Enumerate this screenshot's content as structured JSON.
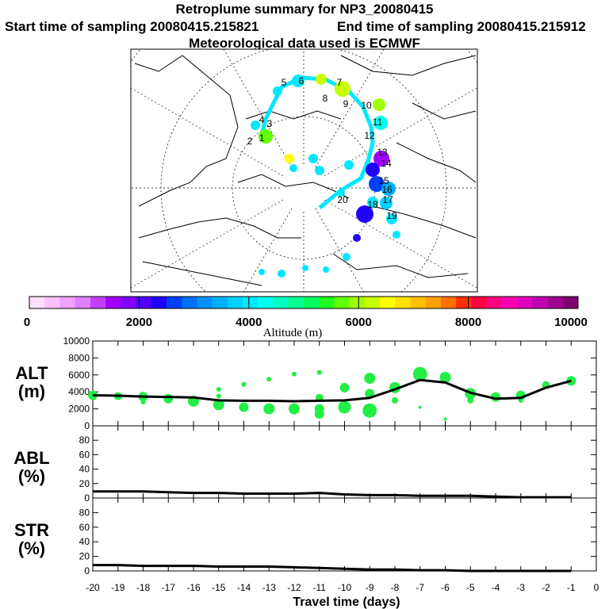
{
  "titles": {
    "line1": "Retroplume summary for NP3_20080415",
    "line2_start": "Start time of sampling 20080415.215821",
    "line2_end": "End time of sampling 20080415.215912",
    "line3": "Meteorological data used is ECMWF"
  },
  "colorbar": {
    "label": "Altitude (m)",
    "tick_labels": [
      "0",
      "2000",
      "4000",
      "6000",
      "8000",
      "10000"
    ],
    "colors": [
      "#ffe0ff",
      "#ffc0ff",
      "#f0a0ff",
      "#e080ff",
      "#c040ff",
      "#a000ff",
      "#8000ff",
      "#5000ff",
      "#2000ff",
      "#0040ff",
      "#0070ff",
      "#0090ff",
      "#00b0ff",
      "#00d0ff",
      "#00e8ff",
      "#00ffee",
      "#00ffc0",
      "#00ff90",
      "#00ff60",
      "#20ff20",
      "#60ff00",
      "#a0ff00",
      "#c8ff00",
      "#ffff00",
      "#ffe000",
      "#ffc000",
      "#ffa000",
      "#ff7000",
      "#ff3000",
      "#ff0040",
      "#ff0080",
      "#ff00b0",
      "#e000c0",
      "#c000b0",
      "#a00090",
      "#800070"
    ]
  },
  "map": {
    "day_labels": [
      "1",
      "2",
      "3",
      "4",
      "5",
      "6",
      "7",
      "8",
      "9",
      "10",
      "11",
      "12",
      "13",
      "14",
      "15",
      "16",
      "17",
      "18",
      "19",
      "20"
    ]
  },
  "chart_data": [
    {
      "type": "line",
      "panel": "ALT",
      "ylabel_line1": "ALT",
      "ylabel_line2": "(m)",
      "xlim": [
        -20,
        0
      ],
      "ylim": [
        0,
        10000
      ],
      "yticks": [
        "0",
        "2000",
        "4000",
        "6000",
        "8000",
        "10000"
      ],
      "x": [
        -20,
        -19,
        -18,
        -17,
        -16,
        -15,
        -14,
        -13,
        -12,
        -11,
        -10,
        -9,
        -8,
        -7,
        -6,
        -5,
        -4,
        -3,
        -2,
        -1
      ],
      "values": [
        3600,
        3550,
        3450,
        3400,
        3350,
        3000,
        2950,
        2950,
        2900,
        2950,
        3000,
        3300,
        4300,
        5400,
        5100,
        3900,
        3200,
        3300,
        4500,
        5300
      ],
      "scatter": [
        {
          "x": -20,
          "y": 3600,
          "r": 6
        },
        {
          "x": -19,
          "y": 3500,
          "r": 5
        },
        {
          "x": -18,
          "y": 3450,
          "r": 6
        },
        {
          "x": -18,
          "y": 2800,
          "r": 3
        },
        {
          "x": -17,
          "y": 3200,
          "r": 6
        },
        {
          "x": -16,
          "y": 2900,
          "r": 7
        },
        {
          "x": -15,
          "y": 2500,
          "r": 7
        },
        {
          "x": -15,
          "y": 4300,
          "r": 3
        },
        {
          "x": -15,
          "y": 3500,
          "r": 3
        },
        {
          "x": -14,
          "y": 2200,
          "r": 6
        },
        {
          "x": -14,
          "y": 4900,
          "r": 3
        },
        {
          "x": -13,
          "y": 2000,
          "r": 7
        },
        {
          "x": -13,
          "y": 5500,
          "r": 3
        },
        {
          "x": -12,
          "y": 2000,
          "r": 7
        },
        {
          "x": -12,
          "y": 6100,
          "r": 3
        },
        {
          "x": -11,
          "y": 1400,
          "r": 6
        },
        {
          "x": -11,
          "y": 2000,
          "r": 6
        },
        {
          "x": -11,
          "y": 3300,
          "r": 5
        },
        {
          "x": -11,
          "y": 6300,
          "r": 3
        },
        {
          "x": -10,
          "y": 2200,
          "r": 8
        },
        {
          "x": -10,
          "y": 4500,
          "r": 6
        },
        {
          "x": -9,
          "y": 1800,
          "r": 9
        },
        {
          "x": -9,
          "y": 5600,
          "r": 7
        },
        {
          "x": -9,
          "y": 3800,
          "r": 6
        },
        {
          "x": -8,
          "y": 4500,
          "r": 7
        },
        {
          "x": -8,
          "y": 3000,
          "r": 4
        },
        {
          "x": -7,
          "y": 6100,
          "r": 9
        },
        {
          "x": -7,
          "y": 2200,
          "r": 2
        },
        {
          "x": -6,
          "y": 5700,
          "r": 7
        },
        {
          "x": -6,
          "y": 800,
          "r": 2
        },
        {
          "x": -5,
          "y": 3800,
          "r": 7
        },
        {
          "x": -5,
          "y": 3000,
          "r": 4
        },
        {
          "x": -4,
          "y": 3400,
          "r": 6
        },
        {
          "x": -3,
          "y": 3600,
          "r": 6
        },
        {
          "x": -3,
          "y": 3000,
          "r": 3
        },
        {
          "x": -2,
          "y": 4800,
          "r": 5
        },
        {
          "x": -1,
          "y": 5300,
          "r": 6
        }
      ]
    },
    {
      "type": "line",
      "panel": "ABL",
      "ylabel_line1": "ABL",
      "ylabel_line2": "(%)",
      "xlim": [
        -20,
        0
      ],
      "ylim": [
        0,
        100
      ],
      "yticks": [
        "0",
        "20",
        "40",
        "60",
        "80"
      ],
      "x": [
        -20,
        -19,
        -18,
        -17,
        -16,
        -15,
        -14,
        -13,
        -12,
        -11,
        -10,
        -9,
        -8,
        -7,
        -6,
        -5,
        -4,
        -3,
        -2,
        -1
      ],
      "values": [
        9,
        9,
        9,
        8,
        7,
        7,
        6,
        6,
        6,
        7,
        5,
        4,
        4,
        3,
        3,
        3,
        2,
        1,
        1,
        1
      ]
    },
    {
      "type": "line",
      "panel": "STR",
      "ylabel_line1": "STR",
      "ylabel_line2": "(%)",
      "xlim": [
        -20,
        0
      ],
      "ylim": [
        0,
        100
      ],
      "yticks": [
        "0",
        "20",
        "40",
        "60",
        "80"
      ],
      "x": [
        -20,
        -19,
        -18,
        -17,
        -16,
        -15,
        -14,
        -13,
        -12,
        -11,
        -10,
        -9,
        -8,
        -7,
        -6,
        -5,
        -4,
        -3,
        -2,
        -1
      ],
      "values": [
        8,
        8,
        7,
        7,
        7,
        6,
        6,
        6,
        5,
        4,
        3,
        2,
        2,
        1,
        1,
        0,
        0,
        0,
        0,
        0
      ]
    }
  ],
  "xaxis": {
    "label": "Travel time (days)",
    "tick_labels": [
      "-20",
      "-19",
      "-18",
      "-17",
      "-16",
      "-15",
      "-14",
      "-13",
      "-12",
      "-11",
      "-10",
      "-9",
      "-8",
      "-7",
      "-6",
      "-5",
      "-4",
      "-3",
      "-2",
      "-1",
      "0"
    ]
  }
}
